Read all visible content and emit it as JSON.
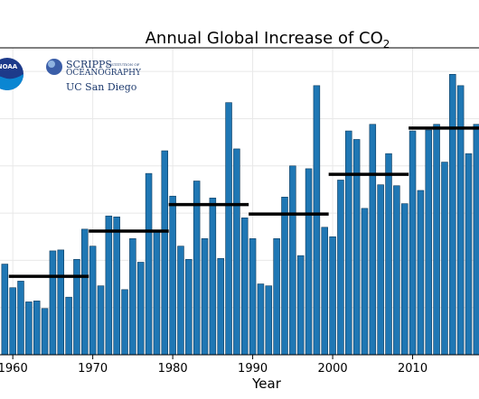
{
  "chart_data": {
    "type": "bar",
    "title": "Annual Global Increase of CO",
    "title_subscript": "2",
    "xlabel": "Year",
    "ylabel": "",
    "x_ticks": [
      1960,
      1970,
      1980,
      1990,
      2000,
      2010
    ],
    "x_tick_labels": [
      "1960",
      "1970",
      "1980",
      "1990",
      "2000",
      "2010"
    ],
    "xlim": [
      1958.4,
      2018.3
    ],
    "ylim": [
      0,
      3.25
    ],
    "grid": true,
    "years": [
      1959,
      1960,
      1961,
      1962,
      1963,
      1964,
      1965,
      1966,
      1967,
      1968,
      1969,
      1970,
      1971,
      1972,
      1973,
      1974,
      1975,
      1976,
      1977,
      1978,
      1979,
      1980,
      1981,
      1982,
      1983,
      1984,
      1985,
      1986,
      1987,
      1988,
      1989,
      1990,
      1991,
      1992,
      1993,
      1994,
      1995,
      1996,
      1997,
      1998,
      1999,
      2000,
      2001,
      2002,
      2003,
      2004,
      2005,
      2006,
      2007,
      2008,
      2009,
      2010,
      2011,
      2012,
      2013,
      2014,
      2015,
      2016,
      2017,
      2018
    ],
    "values": [
      0.96,
      0.71,
      0.78,
      0.56,
      0.57,
      0.49,
      1.1,
      1.11,
      0.61,
      1.01,
      1.33,
      1.15,
      0.73,
      1.47,
      1.46,
      0.69,
      1.23,
      0.98,
      1.92,
      1.32,
      2.16,
      1.68,
      1.15,
      1.01,
      1.84,
      1.23,
      1.66,
      1.02,
      2.67,
      2.18,
      1.45,
      1.23,
      0.75,
      0.73,
      1.23,
      1.67,
      2.0,
      1.05,
      1.97,
      2.85,
      1.35,
      1.25,
      1.85,
      2.37,
      2.28,
      1.55,
      2.44,
      1.8,
      2.13,
      1.79,
      1.6,
      2.37,
      1.74,
      2.38,
      2.44,
      2.04,
      2.97,
      2.85,
      2.13,
      2.44
    ],
    "decade_averages": [
      {
        "start": 1959.5,
        "end": 1969.5,
        "value": 0.83
      },
      {
        "start": 1969.5,
        "end": 1979.5,
        "value": 1.31
      },
      {
        "start": 1979.5,
        "end": 1989.5,
        "value": 1.59
      },
      {
        "start": 1989.5,
        "end": 1999.5,
        "value": 1.49
      },
      {
        "start": 1999.5,
        "end": 2009.5,
        "value": 1.91
      },
      {
        "start": 2009.5,
        "end": 2019.5,
        "value": 2.4
      }
    ],
    "colors": {
      "bar": "#1f77b4",
      "average_line": "#000000"
    }
  },
  "logos": {
    "noaa": {
      "text": "NOAA",
      "colors": [
        "#1d3a8a",
        "#0a86d2"
      ]
    },
    "scripps": {
      "line1": "SCRIPPS",
      "line2": "INSTITUTION OF",
      "line3": "OCEANOGRAPHY"
    },
    "ucsd": {
      "text": "UC San Diego"
    }
  }
}
